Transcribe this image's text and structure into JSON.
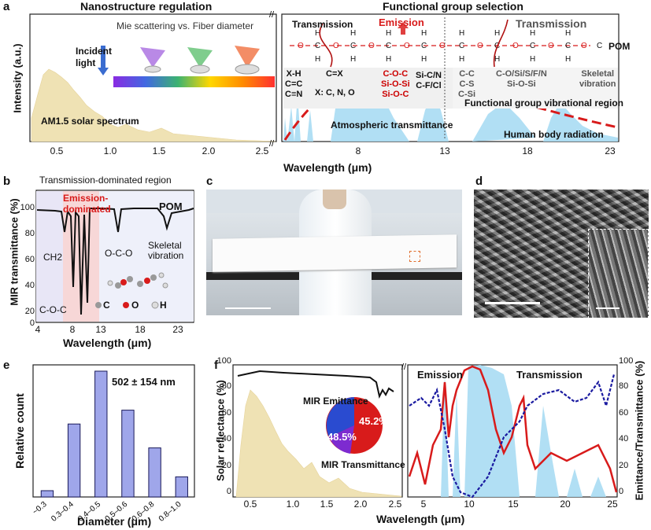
{
  "panel_a": {
    "label": "a",
    "title_left": "Nanostructure regulation",
    "title_right": "Functional group selection",
    "ylabel": "Intensity (a.u.)",
    "xlabel": "Wavelength (μm)",
    "mie": "Mie scattering vs. Fiber diameter",
    "incident": "Incident light",
    "am15": "AM1.5 solar spectrum",
    "transmission": "Transmission",
    "emission": "Emission",
    "transmission2": "Transmission",
    "pom": "POM",
    "atm": "Atmospheric transmittance",
    "body": "Human body radiation",
    "fgv": "Functional group vibrational region",
    "groups": [
      {
        "lines": [
          "X-H",
          "C=C",
          "C≡N"
        ],
        "color": "#111"
      },
      {
        "lines": [
          "C=X"
        ],
        "color": "#111"
      },
      {
        "lines": [
          "X: C, N, O"
        ],
        "color": "#111"
      },
      {
        "lines": [
          "C-O-C",
          "Si-O-Si",
          "Si-O-C"
        ],
        "color": "#c00"
      },
      {
        "lines": [
          "Si-C/N",
          "C-F/Cl"
        ],
        "color": "#111"
      },
      {
        "lines": [
          "C-C",
          "C-S",
          "C-Si"
        ],
        "color": "#555"
      },
      {
        "lines": [
          "C-O/Si/S/F/N",
          "Si-O-Si"
        ],
        "color": "#555"
      },
      {
        "lines": [
          "Skeletal",
          "vibration"
        ],
        "color": "#555"
      }
    ],
    "xticks_left": [
      "0.5",
      "1.0",
      "1.5",
      "2.0",
      "2.5"
    ],
    "xticks_right": [
      "8",
      "13",
      "18",
      "23"
    ]
  },
  "panel_b": {
    "label": "b",
    "title": "Transmission-dominated region",
    "emission": "Emission-dominated",
    "pom": "POM",
    "ylabel": "MIR transmittance (%)",
    "xlabel": "Wavelength (μm)",
    "ann_ch2": "CH2",
    "ann_oco": "O-C-O",
    "ann_skel": "Skeletal vibration",
    "ann_coc": "C-O-C",
    "legend": [
      "C",
      "O",
      "H"
    ],
    "yticks": [
      "100",
      "80",
      "60",
      "40",
      "20",
      "0"
    ],
    "xticks": [
      "4",
      "8",
      "13",
      "18",
      "23"
    ]
  },
  "panel_c": {
    "label": "c"
  },
  "panel_d": {
    "label": "d"
  },
  "panel_e": {
    "label": "e",
    "ylabel": "Relative count",
    "xlabel": "Diameter (μm)",
    "annotation": "502 ± 154 nm",
    "chart_data": {
      "type": "bar",
      "categories": [
        "~0.3",
        "0.3–0.4",
        "0.4–0.5",
        "0.5–0.6",
        "0.6–0.8",
        "0.8–1.0"
      ],
      "values": [
        0.05,
        0.58,
        1.0,
        0.69,
        0.39,
        0.16
      ],
      "ylim": [
        0,
        1.05
      ]
    }
  },
  "panel_f": {
    "label": "f",
    "ylabel_left": "Solar reflectance (%)",
    "ylabel_right": "Emittance/Transmittance (%)",
    "xlabel": "Wavelength (μm)",
    "emission": "Emission",
    "transmission": "Transmission",
    "pie_title": "MIR Emittance",
    "pie_em": "45.2%",
    "pie_tr": "48.5%",
    "pie_tr_label": "MIR Transmittance",
    "yticks": [
      "0",
      "20",
      "40",
      "60",
      "80",
      "100"
    ],
    "xticks_left": [
      "0.5",
      "1.0",
      "1.5",
      "2.0",
      "2.5"
    ],
    "xticks_right": [
      "5",
      "10",
      "15",
      "20",
      "25"
    ],
    "chart_data": {
      "type": "pie",
      "categories": [
        "MIR Emittance",
        "MIR Transmittance",
        "Other"
      ],
      "values": [
        45.2,
        48.5,
        6.3
      ]
    }
  },
  "colors": {
    "emission": "#d81b1b",
    "transmission": "#1a1aa0",
    "solar": "#e9d9a6",
    "atm": "#9fd6f0"
  }
}
